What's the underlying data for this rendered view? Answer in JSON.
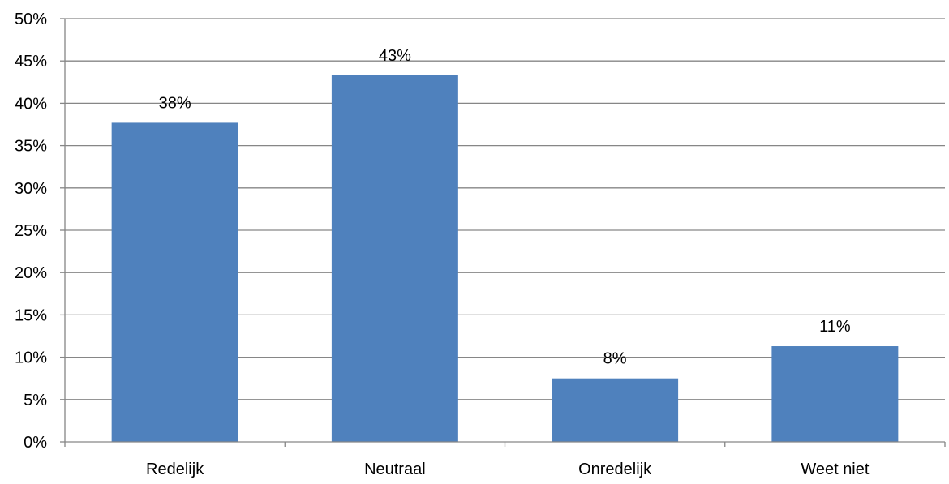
{
  "chart_data": {
    "type": "bar",
    "categories": [
      "Redelijk",
      "Neutraal",
      "Onredelijk",
      "Weet niet"
    ],
    "values": [
      37.7,
      43.3,
      7.5,
      11.3
    ],
    "data_labels": [
      "38%",
      "43%",
      "8%",
      "11%"
    ],
    "title": "",
    "xlabel": "",
    "ylabel": "",
    "ylim": [
      0,
      50
    ],
    "y_ticks": [
      0,
      5,
      10,
      15,
      20,
      25,
      30,
      35,
      40,
      45,
      50
    ],
    "y_tick_labels": [
      "0%",
      "5%",
      "10%",
      "15%",
      "20%",
      "25%",
      "30%",
      "35%",
      "40%",
      "45%",
      "50%"
    ],
    "grid": true,
    "legend": "none",
    "colors": {
      "bar": "#4f81bd",
      "grid": "#868686",
      "axis": "#868686"
    }
  }
}
